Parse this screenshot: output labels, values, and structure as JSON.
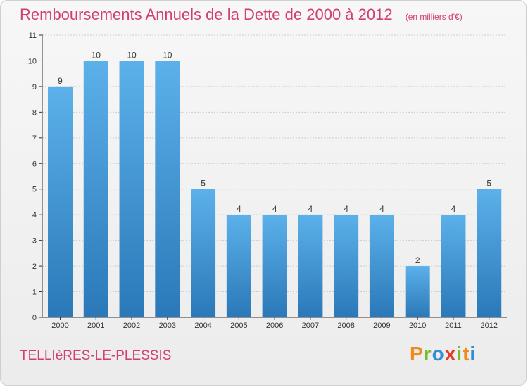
{
  "title": "Remboursements Annuels de la Dette de 2000 à 2012",
  "unit": "(en milliers d'€)",
  "place": "TELLIèRES-LE-PLESSIS",
  "logo": {
    "text": "Proxiti",
    "letters": [
      "P",
      "r",
      "o",
      "x",
      "i",
      "t",
      "i"
    ],
    "colors": [
      "#f08a1c",
      "#7bb92e",
      "#2f8ed8",
      "#e63a2a",
      "#7bb92e",
      "#f08a1c",
      "#2f8ed8"
    ]
  },
  "colors": {
    "bar_top": "#5cb1ea",
    "bar_bottom": "#2a78b8",
    "title": "#d13e73"
  },
  "chart_data": {
    "type": "bar",
    "categories": [
      "2000",
      "2001",
      "2002",
      "2003",
      "2004",
      "2005",
      "2006",
      "2007",
      "2008",
      "2009",
      "2010",
      "2011",
      "2012"
    ],
    "values": [
      9,
      10,
      10,
      10,
      5,
      4,
      4,
      4,
      4,
      4,
      2,
      4,
      5
    ],
    "title": "Remboursements Annuels de la Dette de 2000 à 2012",
    "ylim": [
      0,
      11
    ],
    "yticks": [
      "0",
      "1",
      "2",
      "3",
      "4",
      "5",
      "6",
      "7",
      "8",
      "9",
      "10",
      "11"
    ],
    "grid": true,
    "legend": "none"
  }
}
